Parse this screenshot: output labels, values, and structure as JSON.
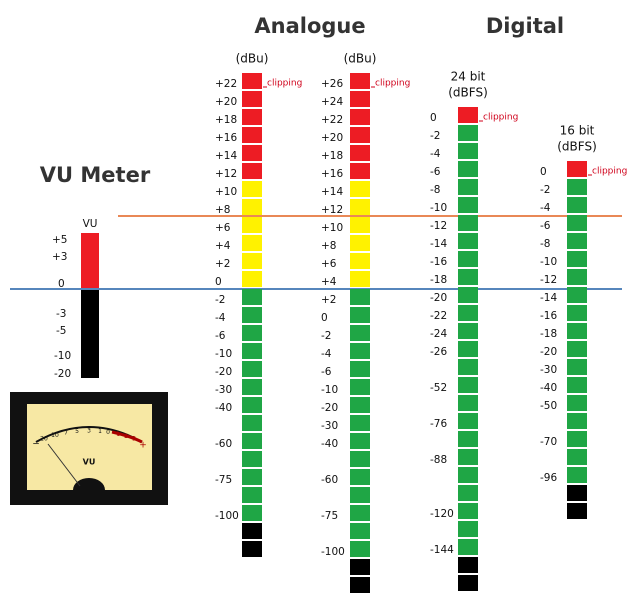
{
  "titles": {
    "analogue": "Analogue",
    "digital": "Digital",
    "vu_meter": "VU Meter"
  },
  "meters": [
    {
      "header": [
        "(dBu)"
      ],
      "clipping": "clipping",
      "segments": [
        {
          "color": "#ed1c24",
          "count": 6
        },
        {
          "color": "#fff200",
          "count": 6
        },
        {
          "color": "#1fa645",
          "count": 13
        },
        {
          "color": "#000000",
          "count": 2
        }
      ],
      "labels": [
        "+22",
        "+20",
        "+18",
        "+16",
        "+14",
        "+12",
        "+10",
        "+8",
        "+6",
        "+4",
        "+2",
        "0",
        "-2",
        "-4",
        "-6",
        "-10",
        "-20",
        "-30",
        "-40",
        null,
        "-60",
        null,
        "-75",
        null,
        "-100"
      ]
    },
    {
      "header": [
        "(dBu)"
      ],
      "clipping": "clipping",
      "segments": [
        {
          "color": "#ed1c24",
          "count": 6
        },
        {
          "color": "#fff200",
          "count": 6
        },
        {
          "color": "#1fa645",
          "count": 15
        },
        {
          "color": "#000000",
          "count": 2
        }
      ],
      "labels": [
        "+26",
        "+24",
        "+22",
        "+20",
        "+18",
        "+16",
        "+14",
        "+12",
        "+10",
        "+8",
        "+6",
        "+4",
        "+2",
        "0",
        "-2",
        "-4",
        "-6",
        "-10",
        "-20",
        "-30",
        "-40",
        null,
        "-60",
        null,
        "-75",
        null,
        "-100"
      ]
    },
    {
      "header": [
        "24 bit",
        "(dBFS)"
      ],
      "clipping": "clipping",
      "segments": [
        {
          "color": "#ed1c24",
          "count": 1
        },
        {
          "color": "#1fa645",
          "count": 24
        },
        {
          "color": "#000000",
          "count": 2
        }
      ],
      "labels": [
        "0",
        "-2",
        "-4",
        "-6",
        "-8",
        "-10",
        "-12",
        "-14",
        "-16",
        "-18",
        "-20",
        "-22",
        "-24",
        "-26",
        null,
        "-52",
        null,
        "-76",
        null,
        "-88",
        null,
        null,
        "-120",
        null,
        "-144"
      ]
    },
    {
      "header": [
        "16 bit",
        "(dBFS)"
      ],
      "clipping": "clipping",
      "segments": [
        {
          "color": "#ed1c24",
          "count": 1
        },
        {
          "color": "#1fa645",
          "count": 17
        },
        {
          "color": "#000000",
          "count": 2
        }
      ],
      "labels": [
        "0",
        "-2",
        "-4",
        "-6",
        "-8",
        "-10",
        "-12",
        "-14",
        "-16",
        "-18",
        "-20",
        "-30",
        "-40",
        "-50",
        null,
        "-70",
        null,
        "-96"
      ]
    }
  ],
  "vu": {
    "title": "VU",
    "labels": [
      "+5",
      "+3",
      "0",
      "-3",
      "-5",
      "-10",
      "-20"
    ],
    "dial": {
      "scale": [
        "20",
        "10",
        "7",
        "5",
        "3",
        "1",
        "0",
        "1",
        "2",
        "3"
      ],
      "label": "VU",
      "minus": "−",
      "plus": "+"
    }
  }
}
